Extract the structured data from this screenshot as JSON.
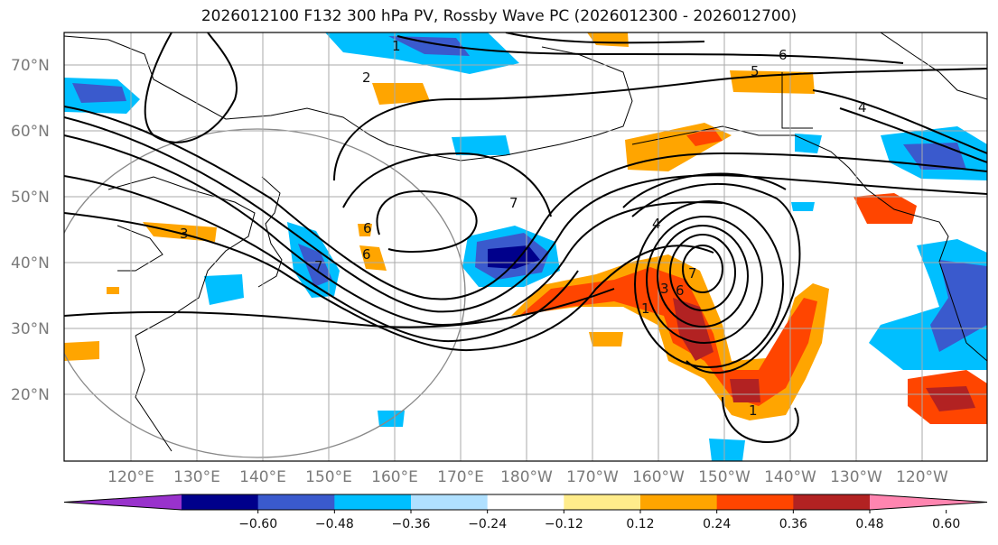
{
  "title": "2026012100 F132 300 hPa PV, Rossby Wave PC (2026012300 - 2026012700)",
  "lat_labels": [
    "70°N",
    "60°N",
    "50°N",
    "40°N",
    "30°N",
    "20°N"
  ],
  "lon_labels": [
    "120°E",
    "130°E",
    "140°E",
    "150°E",
    "160°E",
    "170°E",
    "180°W",
    "170°W",
    "160°W",
    "150°W",
    "140°W",
    "130°W",
    "120°W"
  ],
  "colorbar": {
    "colors": [
      "#9932cc",
      "#00008b",
      "#3a5acd",
      "#00bfff",
      "#b0e0ff",
      "#ffffff",
      "#ffec8b",
      "#ffa500",
      "#ff4500",
      "#b22222",
      "#ff85b0"
    ],
    "ticks": [
      "−0.60",
      "−0.48",
      "−0.36",
      "−0.24",
      "−0.12",
      "0.12",
      "0.24",
      "0.36",
      "0.48",
      "0.60"
    ]
  },
  "contour_labels": [
    "1",
    "2",
    "6",
    "5",
    "4",
    "3",
    "6",
    "7",
    "4",
    "6",
    "7",
    "3",
    "6",
    "7",
    "1",
    "1"
  ]
}
